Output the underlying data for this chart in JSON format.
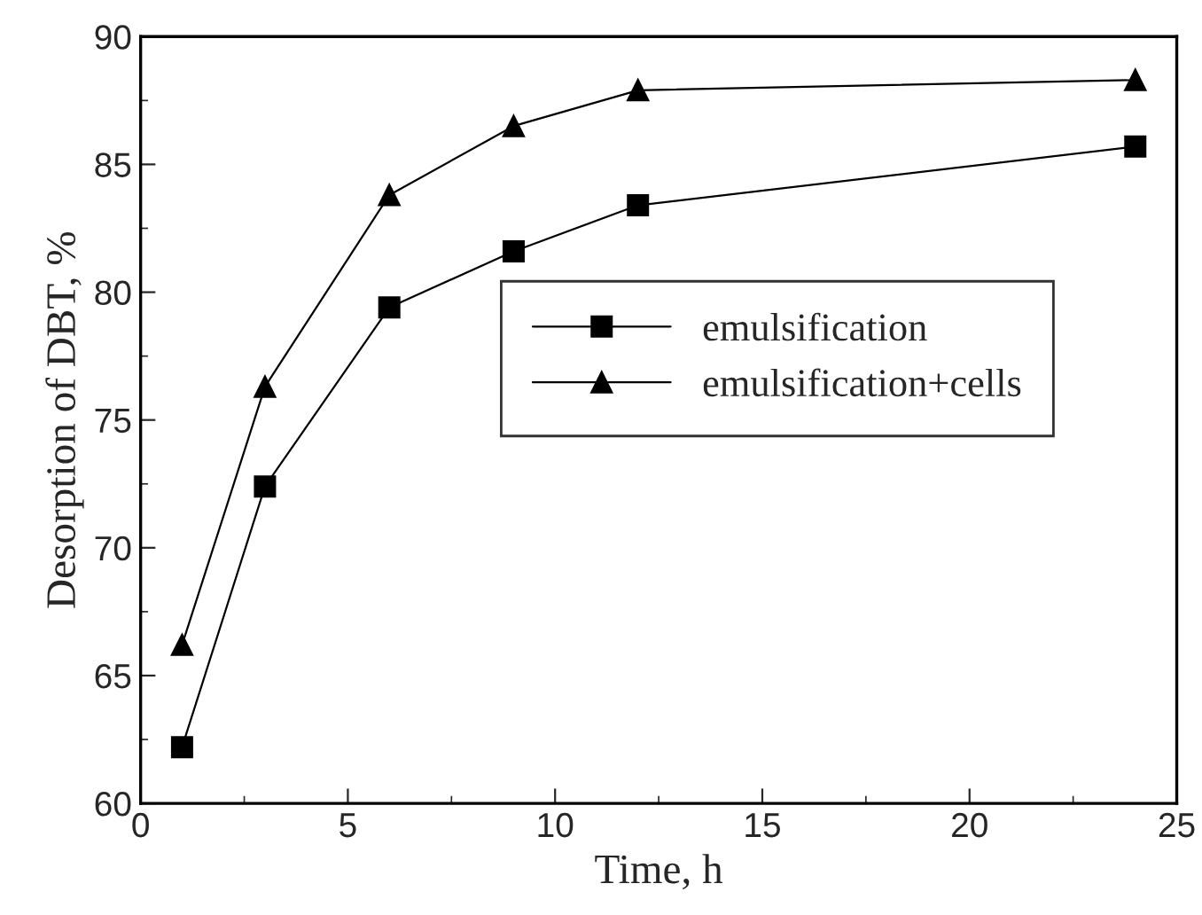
{
  "chart_data": {
    "type": "line",
    "xlabel": "Time, h",
    "ylabel": "Desorption of DBT, %",
    "x": [
      1,
      3,
      6,
      9,
      12,
      24
    ],
    "series": [
      {
        "name": "emulsification",
        "color": "#000000",
        "marker": "square",
        "values": [
          62.2,
          72.4,
          79.4,
          81.6,
          83.4,
          85.7
        ]
      },
      {
        "name": "emulsification+cells",
        "color": "#000000",
        "marker": "triangle",
        "values": [
          66.2,
          76.3,
          83.8,
          86.5,
          87.9,
          88.3
        ]
      }
    ],
    "xlim": [
      0,
      25
    ],
    "xticks": [
      0,
      5,
      10,
      15,
      20,
      25
    ],
    "ylim": [
      60,
      90
    ],
    "yticks": [
      60,
      65,
      70,
      75,
      80,
      85,
      90
    ],
    "grid": false,
    "legend": "center right",
    "line_style": "solid"
  }
}
